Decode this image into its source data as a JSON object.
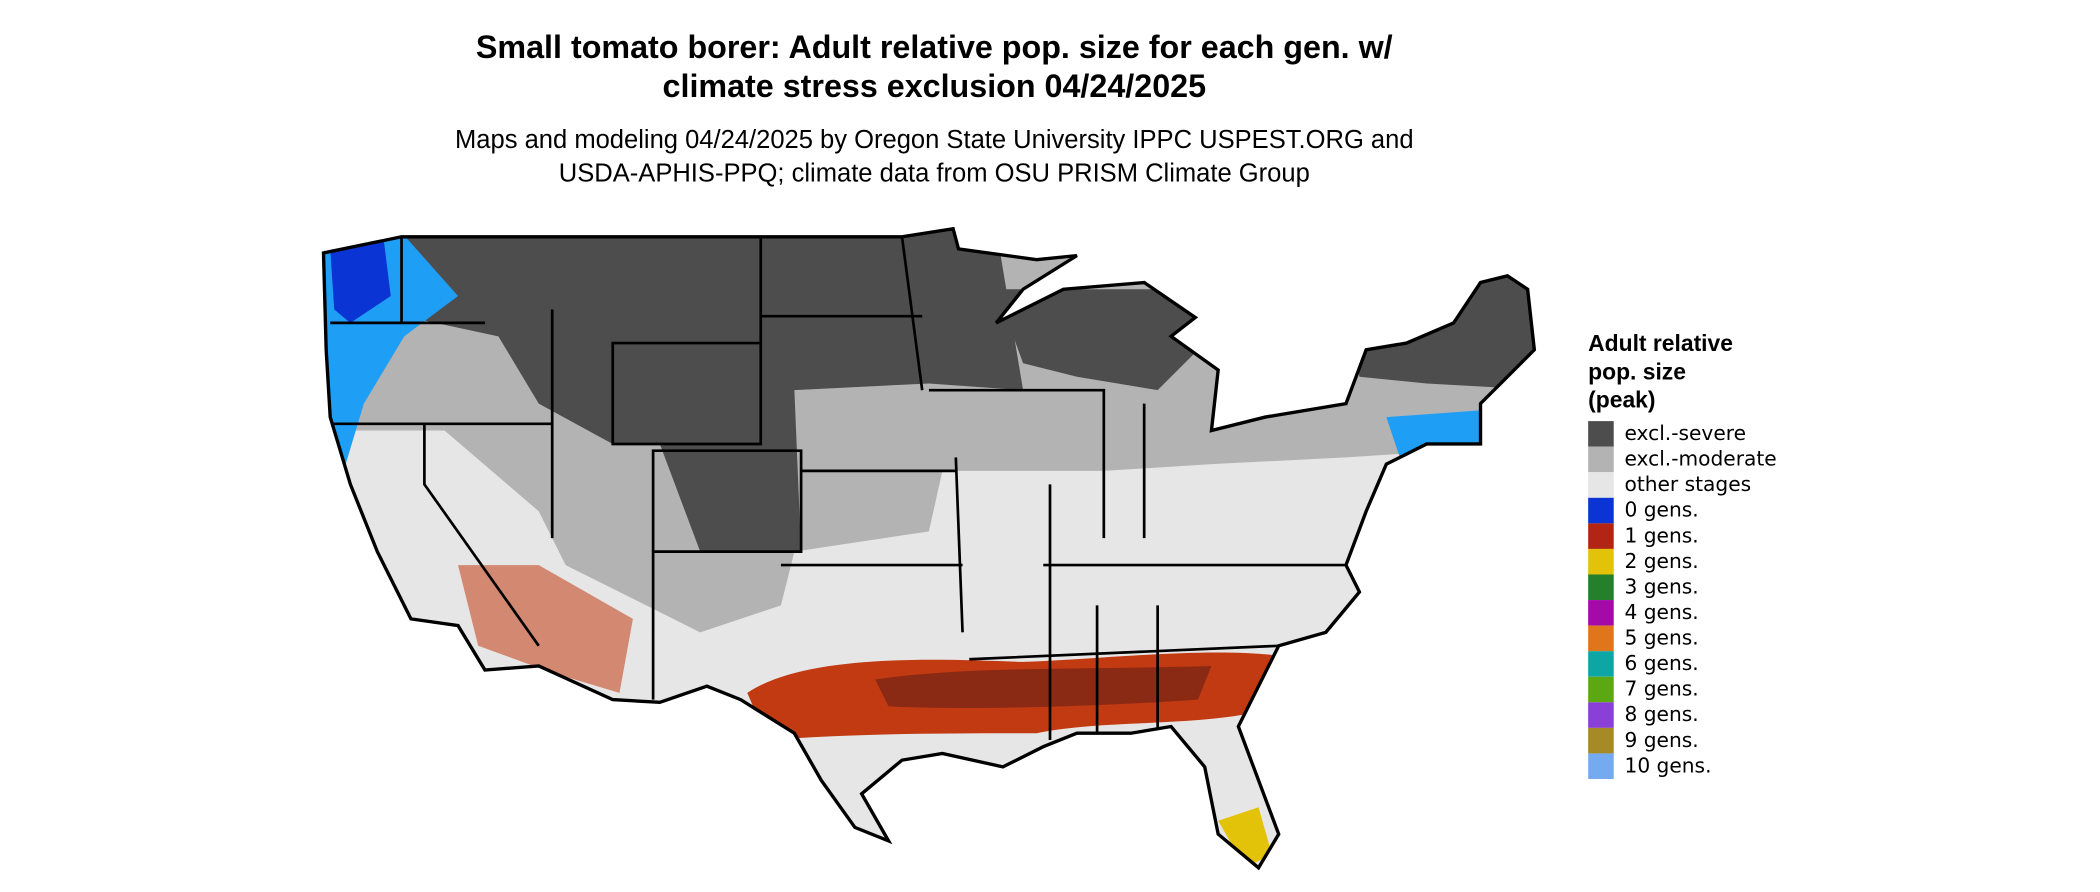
{
  "title": [
    "Small tomato borer: Adult relative pop. size for each gen. w/",
    "climate stress exclusion 04/24/2025"
  ],
  "subtitle": [
    "Maps and modeling 04/24/2025 by Oregon State University IPPC USPEST.ORG and",
    "USDA-APHIS-PPQ; climate data from OSU PRISM Climate Group"
  ],
  "legend": {
    "title": [
      "Adult relative",
      "pop. size",
      "(peak)"
    ],
    "items": [
      {
        "label": "excl.-severe",
        "color": "#4d4d4d"
      },
      {
        "label": "excl.-moderate",
        "color": "#b3b3b3"
      },
      {
        "label": "other stages",
        "color": "#e6e6e6"
      },
      {
        "label": "0 gens.",
        "color": "#0a35d4"
      },
      {
        "label": "1 gens.",
        "color": "#b22515"
      },
      {
        "label": "2 gens.",
        "color": "#e3c20a"
      },
      {
        "label": "3 gens.",
        "color": "#24802a"
      },
      {
        "label": "4 gens.",
        "color": "#a30aa8"
      },
      {
        "label": "5 gens.",
        "color": "#e0761b"
      },
      {
        "label": "6 gens.",
        "color": "#0ea5a5"
      },
      {
        "label": "7 gens.",
        "color": "#5ca812"
      },
      {
        "label": "8 gens.",
        "color": "#8a3fd6"
      },
      {
        "label": "9 gens.",
        "color": "#a58a25"
      },
      {
        "label": "10 gens.",
        "color": "#74aaf0"
      }
    ]
  }
}
